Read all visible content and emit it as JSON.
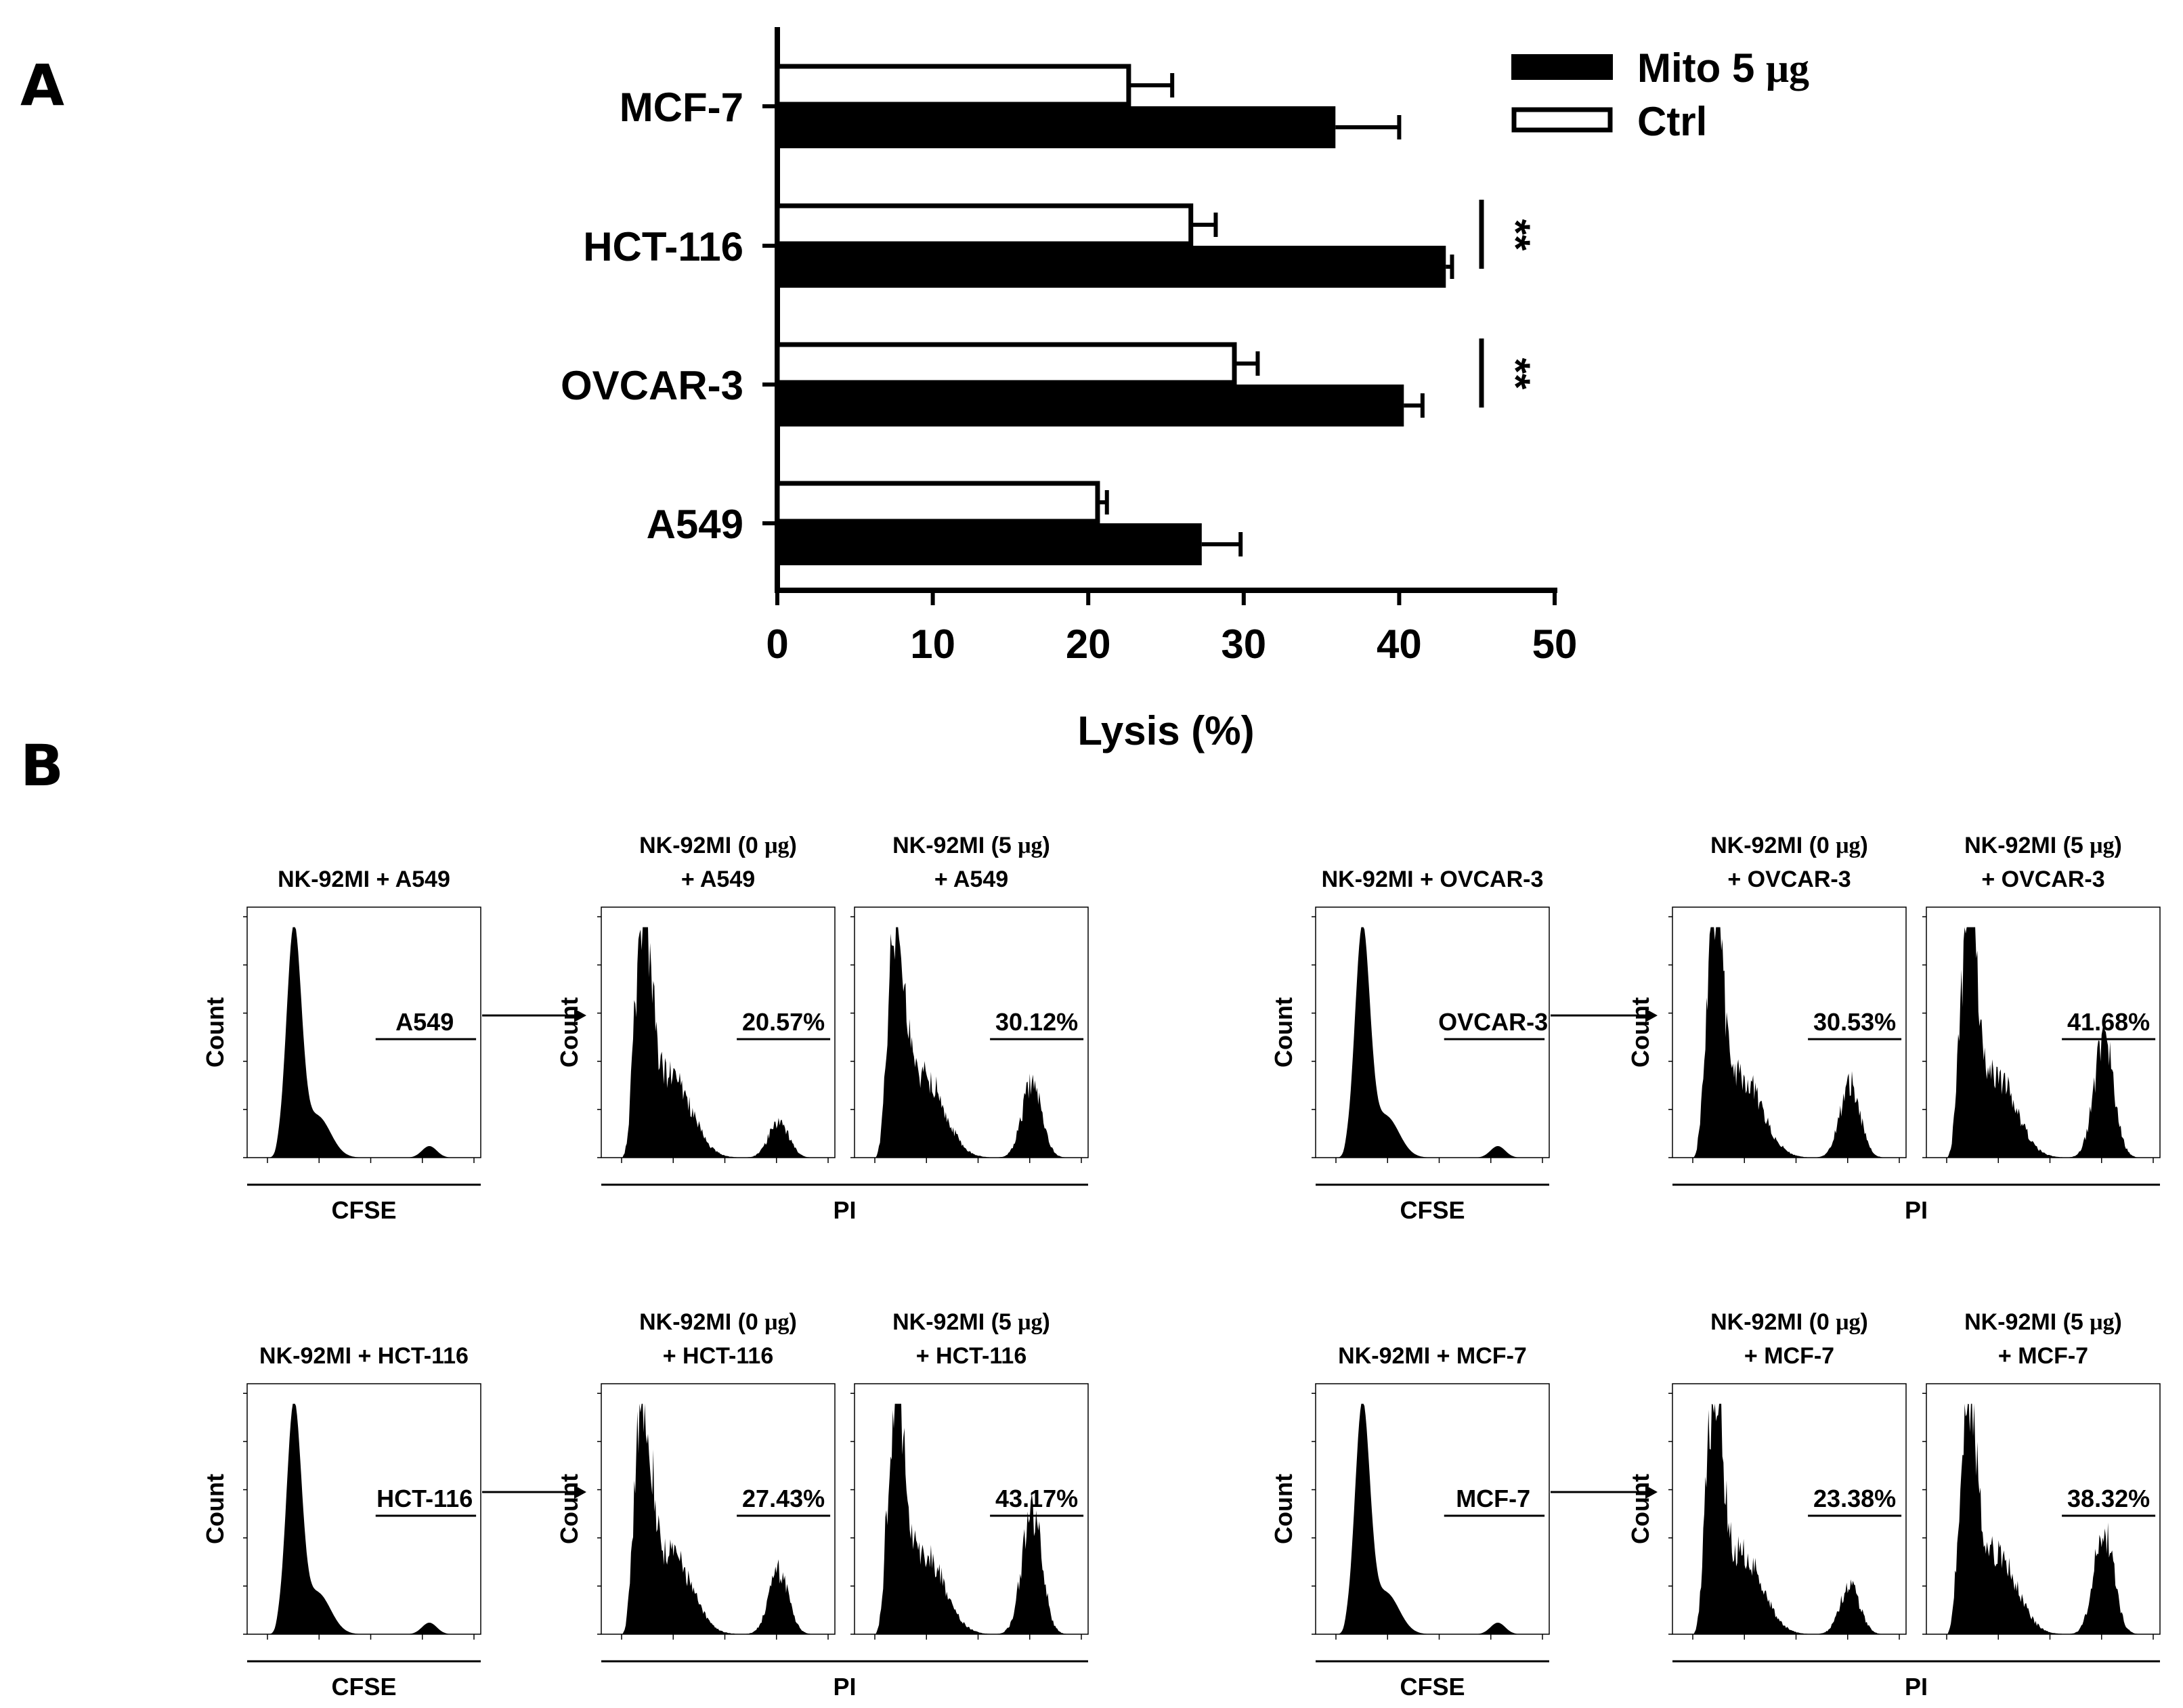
{
  "panel_letters": {
    "a": "A",
    "b": "B"
  },
  "chart_data": [
    {
      "type": "bar",
      "orientation": "horizontal",
      "categories": [
        "MCF-7",
        "HCT-116",
        "OVCAR-3",
        "A549"
      ],
      "series": [
        {
          "name": "Mito 5 μg",
          "color": "#000000",
          "values": [
            35.9,
            43.0,
            40.3,
            27.3
          ],
          "errors": [
            4.1,
            0.4,
            1.2,
            2.5
          ]
        },
        {
          "name": "Ctrl",
          "color": "#ffffff",
          "values": [
            22.6,
            26.6,
            29.4,
            20.6
          ],
          "errors": [
            2.8,
            1.6,
            1.5,
            0.6
          ]
        }
      ],
      "xlabel": "Lysis (%)",
      "ylabel": "",
      "xlim": [
        0,
        50
      ],
      "xticks": [
        0,
        10,
        20,
        30,
        40,
        50
      ],
      "legend_position": "top-right",
      "grid": false,
      "significance": [
        {
          "category": "HCT-116",
          "label": "**"
        },
        {
          "category": "OVCAR-3",
          "label": "**"
        }
      ]
    },
    {
      "type": "histogram",
      "panels": [
        {
          "gate_title": "NK-92MI + A549",
          "gate_x": "CFSE",
          "gate_label": "A549",
          "y": "Count",
          "lysis": [
            {
              "title1": "NK-92MI (0 μg)",
              "title2": "+ A549",
              "percent": "20.57%",
              "x": "PI"
            },
            {
              "title1": "NK-92MI (5 μg)",
              "title2": "+ A549",
              "percent": "30.12%",
              "x": "PI"
            }
          ]
        },
        {
          "gate_title": "NK-92MI + OVCAR-3",
          "gate_x": "CFSE",
          "gate_label": "OVCAR-3",
          "y": "Count",
          "lysis": [
            {
              "title1": "NK-92MI (0 μg)",
              "title2": "+ OVCAR-3",
              "percent": "30.53%",
              "x": "PI"
            },
            {
              "title1": "NK-92MI (5 μg)",
              "title2": "+ OVCAR-3",
              "percent": "41.68%",
              "x": "PI"
            }
          ]
        },
        {
          "gate_title": "NK-92MI + HCT-116",
          "gate_x": "CFSE",
          "gate_label": "HCT-116",
          "y": "Count",
          "lysis": [
            {
              "title1": "NK-92MI (0 μg)",
              "title2": "+ HCT-116",
              "percent": "27.43%",
              "x": "PI"
            },
            {
              "title1": "NK-92MI (5 μg)",
              "title2": "+ HCT-116",
              "percent": "43.17%",
              "x": "PI"
            }
          ]
        },
        {
          "gate_title": "NK-92MI + MCF-7",
          "gate_x": "CFSE",
          "gate_label": "MCF-7",
          "y": "Count",
          "lysis": [
            {
              "title1": "NK-92MI (0 μg)",
              "title2": "+ MCF-7",
              "percent": "23.38%",
              "x": "PI"
            },
            {
              "title1": "NK-92MI (5 μg)",
              "title2": "+ MCF-7",
              "percent": "38.32%",
              "x": "PI"
            }
          ]
        }
      ]
    }
  ]
}
